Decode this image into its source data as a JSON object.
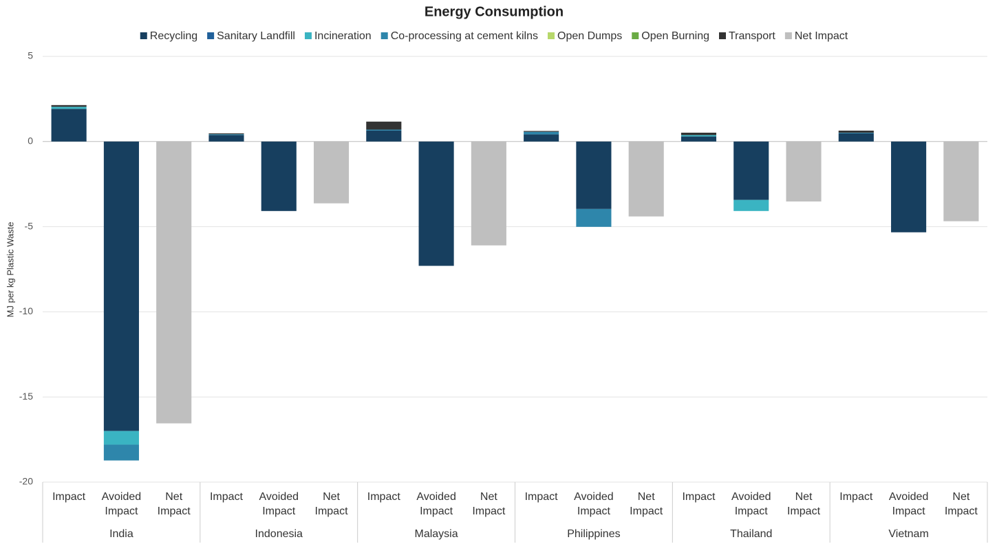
{
  "chart_data": {
    "type": "stacked_bar",
    "title": "Energy Consumption",
    "y_label": "MJ per kg Plastic Waste",
    "categories": [
      "Impact",
      "Avoided Impact",
      "Net Impact",
      "Impact",
      "Avoided Impact",
      "Net Impact",
      "Impact",
      "Avoided Impact",
      "Net Impact",
      "Impact",
      "Avoided Impact",
      "Net Impact",
      "Impact",
      "Avoided Impact",
      "Net Impact",
      "Impact",
      "Avoided Impact",
      "Net Impact"
    ],
    "groups": [
      "India",
      "Indonesia",
      "Malaysia",
      "Philippines",
      "Thailand",
      "Vietnam"
    ],
    "ylim": [
      -20,
      5
    ],
    "yticks": [
      -20,
      -15,
      -10,
      -5,
      0,
      5
    ],
    "grid": true,
    "legend": "top",
    "series": [
      {
        "name": "Recycling",
        "color": "#173f5f",
        "values": [
          1.92,
          -17.0,
          0,
          0.38,
          -4.08,
          0,
          0.64,
          -7.3,
          0,
          0.42,
          -3.96,
          0,
          0.3,
          -3.43,
          0,
          0.48,
          -5.33,
          0
        ]
      },
      {
        "name": "Sanitary Landfill",
        "color": "#20609a",
        "values": [
          0,
          0,
          0,
          0,
          0,
          0,
          0,
          0,
          0,
          0,
          0,
          0,
          0,
          0,
          0,
          0,
          0,
          0
        ]
      },
      {
        "name": "Incineration",
        "color": "#3ab4c2",
        "values": [
          0.12,
          -0.8,
          0,
          0,
          0,
          0,
          0,
          0,
          0,
          0,
          0,
          0,
          0.08,
          -0.65,
          0,
          0,
          0,
          0
        ]
      },
      {
        "name": "Co-processing at cement kilns",
        "color": "#2e86ab",
        "values": [
          0,
          -0.93,
          0,
          0.05,
          0,
          0,
          0.06,
          0,
          0,
          0.15,
          -1.05,
          0,
          0,
          0,
          0,
          0.04,
          0,
          0
        ]
      },
      {
        "name": "Open Dumps",
        "color": "#b7d86b",
        "values": [
          0,
          0,
          0,
          0,
          0,
          0,
          0,
          0,
          0,
          0,
          0,
          0,
          0,
          0,
          0,
          0,
          0,
          0
        ]
      },
      {
        "name": "Open Burning",
        "color": "#6aab44",
        "values": [
          0,
          0,
          0,
          0,
          0,
          0,
          0,
          0,
          0,
          0,
          0,
          0,
          0,
          0,
          0,
          0,
          0,
          0
        ]
      },
      {
        "name": "Transport",
        "color": "#333333",
        "values": [
          0.1,
          0,
          0,
          0.05,
          0,
          0,
          0.47,
          0,
          0,
          0.05,
          0,
          0,
          0.14,
          0,
          0,
          0.12,
          0,
          0
        ]
      },
      {
        "name": "Net Impact",
        "color": "#bfbfbf",
        "values": [
          0,
          0,
          -16.55,
          0,
          0,
          -3.63,
          0,
          0,
          -6.1,
          0,
          0,
          -4.4,
          0,
          0,
          -3.52,
          0,
          0,
          -4.68
        ]
      }
    ]
  }
}
